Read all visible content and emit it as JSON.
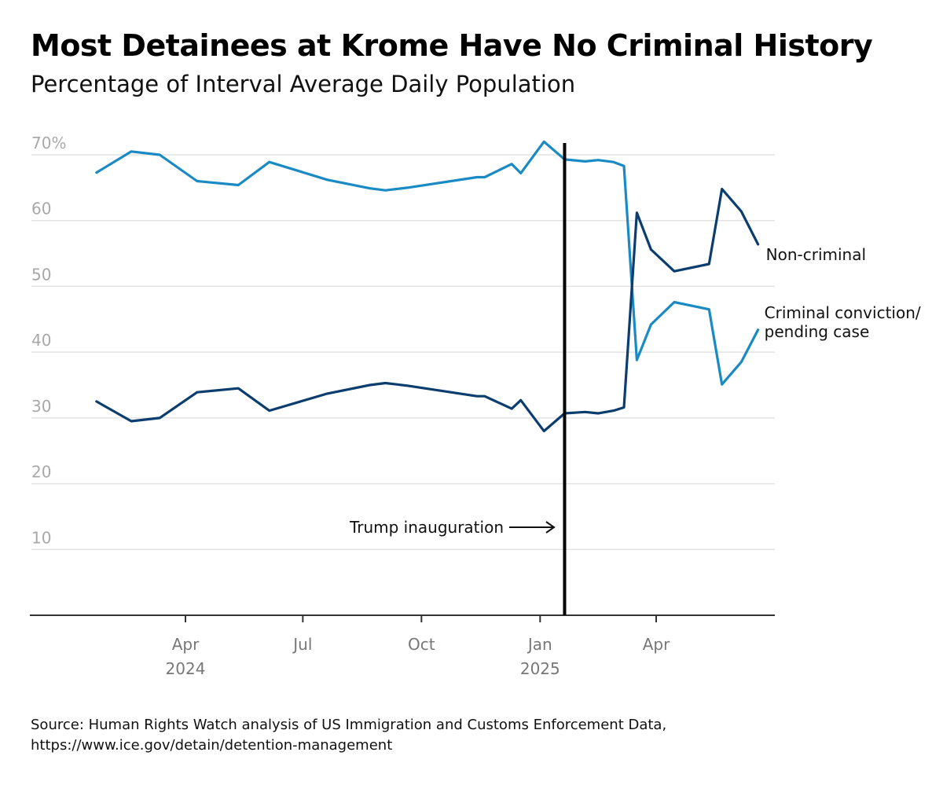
{
  "header": {
    "title": "Most Detainees at Krome Have No Criminal History",
    "subtitle": "Percentage of Interval Average Daily Population"
  },
  "source": {
    "line1": "Source: Human Rights Watch analysis of US Immigration and Customs Enforcement Data,",
    "line2": "https://www.ice.gov/detain/detention-management"
  },
  "colors": {
    "criminal": "#0b3d6e",
    "noncriminal": "#1a8ac4",
    "grid": "#e3e3e3",
    "axis": "#333333",
    "marker": "#000000"
  },
  "chart_data": {
    "type": "line",
    "ylim": [
      0,
      70
    ],
    "xlim": [
      "2024-01-01",
      "2025-07-01"
    ],
    "grid": true,
    "legend": "direct labels at line ends",
    "y_ticks": [
      {
        "value": 10,
        "label": "10"
      },
      {
        "value": 20,
        "label": "20"
      },
      {
        "value": 30,
        "label": "30"
      },
      {
        "value": 40,
        "label": "40"
      },
      {
        "value": 50,
        "label": "50"
      },
      {
        "value": 60,
        "label": "60"
      },
      {
        "value": 70,
        "label": "70%"
      }
    ],
    "x_ticks": [
      {
        "date": "2024-04-01",
        "label": "Apr",
        "year": "2024"
      },
      {
        "date": "2024-07-01",
        "label": "Jul",
        "year": ""
      },
      {
        "date": "2024-10-01",
        "label": "Oct",
        "year": ""
      },
      {
        "date": "2025-01-01",
        "label": "Jan",
        "year": "2025"
      },
      {
        "date": "2025-04-01",
        "label": "Apr",
        "year": ""
      }
    ],
    "series": [
      {
        "key": "noncriminal",
        "label_lines": [
          "Non-criminal"
        ],
        "points": [
          [
            "2024-01-23",
            67.3
          ],
          [
            "2024-02-19",
            70.5
          ],
          [
            "2024-03-12",
            70.0
          ],
          [
            "2024-04-10",
            66.0
          ],
          [
            "2024-05-12",
            65.4
          ],
          [
            "2024-06-05",
            68.9
          ],
          [
            "2024-07-20",
            66.2
          ],
          [
            "2024-08-22",
            64.9
          ],
          [
            "2024-09-03",
            64.6
          ],
          [
            "2024-09-20",
            65.0
          ],
          [
            "2024-11-13",
            66.6
          ],
          [
            "2024-11-19",
            66.6
          ],
          [
            "2024-12-10",
            68.6
          ],
          [
            "2024-12-17",
            67.2
          ],
          [
            "2025-01-04",
            72.0
          ],
          [
            "2025-01-20",
            69.3
          ],
          [
            "2025-02-05",
            69.0
          ],
          [
            "2025-02-15",
            69.2
          ],
          [
            "2025-02-27",
            68.9
          ],
          [
            "2025-03-07",
            68.3
          ],
          [
            "2025-03-17",
            38.8
          ],
          [
            "2025-03-28",
            44.2
          ],
          [
            "2025-04-15",
            47.6
          ],
          [
            "2025-05-12",
            46.5
          ],
          [
            "2025-05-22",
            35.1
          ],
          [
            "2025-06-06",
            38.5
          ],
          [
            "2025-06-19",
            43.4
          ]
        ]
      },
      {
        "key": "criminal",
        "label_lines": [
          "Criminal conviction/",
          "pending case"
        ],
        "points": [
          [
            "2024-01-23",
            32.5
          ],
          [
            "2024-02-19",
            29.5
          ],
          [
            "2024-03-12",
            30.0
          ],
          [
            "2024-04-10",
            33.9
          ],
          [
            "2024-05-12",
            34.5
          ],
          [
            "2024-06-05",
            31.1
          ],
          [
            "2024-07-20",
            33.7
          ],
          [
            "2024-08-22",
            35.0
          ],
          [
            "2024-09-03",
            35.3
          ],
          [
            "2024-09-20",
            34.9
          ],
          [
            "2024-11-13",
            33.3
          ],
          [
            "2024-11-19",
            33.3
          ],
          [
            "2024-12-10",
            31.4
          ],
          [
            "2024-12-17",
            32.7
          ],
          [
            "2025-01-04",
            28.0
          ],
          [
            "2025-01-20",
            30.7
          ],
          [
            "2025-02-05",
            30.9
          ],
          [
            "2025-02-15",
            30.7
          ],
          [
            "2025-02-27",
            31.1
          ],
          [
            "2025-03-07",
            31.6
          ],
          [
            "2025-03-17",
            61.2
          ],
          [
            "2025-03-28",
            55.6
          ],
          [
            "2025-04-15",
            52.3
          ],
          [
            "2025-05-12",
            53.4
          ],
          [
            "2025-05-22",
            64.8
          ],
          [
            "2025-06-06",
            61.4
          ],
          [
            "2025-06-19",
            56.4
          ]
        ]
      }
    ],
    "annotation": {
      "label": "Trump inauguration",
      "date": "2025-01-20"
    }
  }
}
